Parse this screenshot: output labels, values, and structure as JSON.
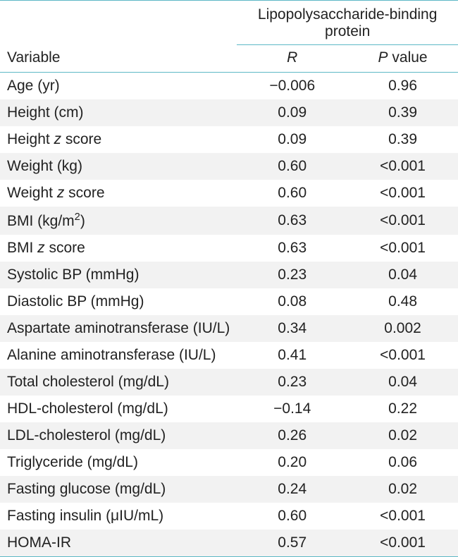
{
  "colors": {
    "rule": "#5db8c6",
    "row_shade": "#f2f2f2",
    "text": "#222222",
    "background": "#ffffff"
  },
  "header": {
    "variable_label": "Variable",
    "supercolumn_label": "Lipopolysaccharide-binding protein",
    "r_label": "R",
    "p_label_prefix": "P",
    "p_label_suffix": " value"
  },
  "rows": [
    {
      "label_html": "Age (yr)",
      "r": "−0.006",
      "p": "0.96"
    },
    {
      "label_html": "Height (cm)",
      "r": "0.09",
      "p": "0.39"
    },
    {
      "label_html": "Height <span class=\"ital\">z</span> score",
      "r": "0.09",
      "p": "0.39"
    },
    {
      "label_html": "Weight (kg)",
      "r": "0.60",
      "p": "<0.001"
    },
    {
      "label_html": "Weight <span class=\"ital\">z</span> score",
      "r": "0.60",
      "p": "<0.001"
    },
    {
      "label_html": "BMI (kg/m<sup>2</sup>)",
      "r": "0.63",
      "p": "<0.001"
    },
    {
      "label_html": "BMI <span class=\"ital\">z</span> score",
      "r": "0.63",
      "p": "<0.001"
    },
    {
      "label_html": "Systolic BP (mmHg)",
      "r": "0.23",
      "p": "0.04"
    },
    {
      "label_html": "Diastolic BP (mmHg)",
      "r": "0.08",
      "p": "0.48"
    },
    {
      "label_html": "Aspartate aminotransferase (IU/L)",
      "r": "0.34",
      "p": "0.002"
    },
    {
      "label_html": "Alanine aminotransferase (IU/L)",
      "r": "0.41",
      "p": "<0.001"
    },
    {
      "label_html": "Total cholesterol (mg/dL)",
      "r": "0.23",
      "p": "0.04"
    },
    {
      "label_html": "HDL-cholesterol (mg/dL)",
      "r": "−0.14",
      "p": "0.22"
    },
    {
      "label_html": "LDL-cholesterol (mg/dL)",
      "r": "0.26",
      "p": "0.02"
    },
    {
      "label_html": "Triglyceride (mg/dL)",
      "r": "0.20",
      "p": "0.06"
    },
    {
      "label_html": "Fasting glucose (mg/dL)",
      "r": "0.24",
      "p": "0.02"
    },
    {
      "label_html": "Fasting insulin (μIU/mL)",
      "r": "0.60",
      "p": "<0.001"
    },
    {
      "label_html": "HOMA-IR",
      "r": "0.57",
      "p": "<0.001"
    }
  ]
}
